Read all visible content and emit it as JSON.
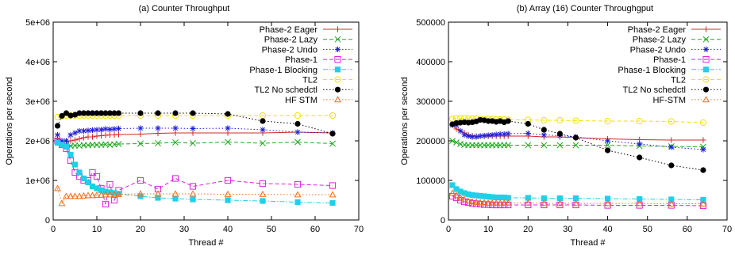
{
  "chart_data": [
    {
      "type": "line",
      "title": "(a) Counter Throughput",
      "xlabel": "Thread #",
      "ylabel": "Operations per second",
      "xlim": [
        0,
        70
      ],
      "ylim": [
        0,
        5000000
      ],
      "xticks": [
        0,
        10,
        20,
        30,
        40,
        50,
        60,
        70
      ],
      "yticks": [
        0,
        1000000,
        2000000,
        3000000,
        4000000,
        5000000
      ],
      "xtick_labels": [
        "0",
        "10",
        "20",
        "30",
        "40",
        "50",
        "60",
        "70"
      ],
      "ytick_labels": [
        "0",
        "1e+06",
        "2e+06",
        "3e+06",
        "4e+06",
        "5e+06"
      ],
      "grid": false,
      "legend_position": "top-right",
      "series": [
        {
          "name": "Phase-2 Eager",
          "color": "#d62728",
          "marker": "plus",
          "dash": "solid",
          "x": [
            1,
            2,
            3,
            4,
            5,
            6,
            7,
            8,
            9,
            10,
            11,
            12,
            13,
            14,
            15,
            20,
            24,
            28,
            32,
            40,
            48,
            56,
            64
          ],
          "y": [
            2050000,
            2000000,
            1980000,
            2000000,
            2020000,
            2050000,
            2080000,
            2100000,
            2100000,
            2120000,
            2130000,
            2140000,
            2150000,
            2150000,
            2160000,
            2170000,
            2190000,
            2200000,
            2200000,
            2200000,
            2200000,
            2220000,
            2200000
          ]
        },
        {
          "name": "Phase-2 Lazy",
          "color": "#1faa1f",
          "marker": "x",
          "dash": "dash",
          "x": [
            1,
            2,
            3,
            4,
            5,
            6,
            7,
            8,
            9,
            10,
            11,
            12,
            13,
            14,
            15,
            20,
            24,
            28,
            32,
            40,
            48,
            56,
            64
          ],
          "y": [
            2000000,
            1950000,
            1900000,
            1870000,
            1880000,
            1880000,
            1890000,
            1890000,
            1900000,
            1900000,
            1900000,
            1910000,
            1900000,
            1910000,
            1920000,
            1930000,
            1940000,
            1960000,
            1940000,
            1970000,
            1940000,
            1970000,
            1930000
          ]
        },
        {
          "name": "Phase-2 Undo",
          "color": "#1f1fd6",
          "marker": "star",
          "dash": "dot",
          "x": [
            1,
            2,
            3,
            4,
            5,
            6,
            7,
            8,
            9,
            10,
            11,
            12,
            13,
            14,
            15,
            20,
            24,
            28,
            32,
            40,
            48,
            56,
            64
          ],
          "y": [
            2150000,
            2000000,
            2000000,
            2150000,
            2200000,
            2250000,
            2250000,
            2260000,
            2270000,
            2280000,
            2280000,
            2300000,
            2290000,
            2300000,
            2310000,
            2320000,
            2320000,
            2320000,
            2310000,
            2320000,
            2280000,
            2220000,
            2200000
          ]
        },
        {
          "name": "Phase-1",
          "color": "#e020e0",
          "marker": "square",
          "dash": "dash",
          "x": [
            1,
            2,
            3,
            4,
            5,
            6,
            7,
            8,
            9,
            10,
            11,
            12,
            13,
            14,
            15,
            20,
            24,
            28,
            32,
            40,
            48,
            56,
            64
          ],
          "y": [
            2000000,
            1900000,
            1800000,
            1500000,
            1200000,
            1100000,
            1000000,
            1000000,
            1200000,
            1100000,
            800000,
            400000,
            900000,
            500000,
            750000,
            1000000,
            780000,
            1050000,
            850000,
            1000000,
            920000,
            900000,
            870000
          ]
        },
        {
          "name": "Phase-1 Blocking",
          "color": "#20d0e8",
          "marker": "filled-square",
          "dash": "dashdot",
          "x": [
            1,
            2,
            3,
            4,
            5,
            6,
            7,
            8,
            9,
            10,
            11,
            12,
            13,
            14,
            15,
            20,
            24,
            28,
            32,
            40,
            48,
            56,
            64
          ],
          "y": [
            1950000,
            1900000,
            1850000,
            1650000,
            1400000,
            1200000,
            1050000,
            950000,
            850000,
            800000,
            750000,
            720000,
            700000,
            680000,
            660000,
            600000,
            560000,
            540000,
            520000,
            500000,
            480000,
            450000,
            430000
          ]
        },
        {
          "name": "TL2",
          "color": "#f2e200",
          "marker": "circle",
          "dash": "dash",
          "x": [
            1,
            2,
            3,
            4,
            5,
            6,
            7,
            8,
            9,
            10,
            11,
            12,
            13,
            14,
            15,
            20,
            24,
            28,
            32,
            40,
            48,
            56,
            64
          ],
          "y": [
            2600000,
            2620000,
            2640000,
            2640000,
            2640000,
            2640000,
            2640000,
            2640000,
            2640000,
            2640000,
            2640000,
            2640000,
            2640000,
            2640000,
            2640000,
            2640000,
            2640000,
            2640000,
            2640000,
            2640000,
            2640000,
            2640000,
            2640000
          ]
        },
        {
          "name": "TL2 No schedctl",
          "color": "#000000",
          "marker": "filled-circle",
          "dash": "dot",
          "x": [
            1,
            2,
            3,
            4,
            5,
            6,
            7,
            8,
            9,
            10,
            11,
            12,
            13,
            14,
            15,
            20,
            24,
            28,
            32,
            40,
            48,
            56,
            64
          ],
          "y": [
            2380000,
            2630000,
            2700000,
            2640000,
            2660000,
            2700000,
            2700000,
            2700000,
            2700000,
            2700000,
            2700000,
            2700000,
            2700000,
            2700000,
            2700000,
            2700000,
            2700000,
            2700000,
            2700000,
            2680000,
            2500000,
            2430000,
            2180000
          ]
        },
        {
          "name": "HF STM",
          "color": "#f07020",
          "marker": "triangle",
          "dash": "dot",
          "x": [
            1,
            2,
            3,
            4,
            5,
            6,
            7,
            8,
            9,
            10,
            11,
            12,
            13,
            14,
            15,
            20,
            24,
            28,
            32,
            40,
            48,
            56,
            64
          ],
          "y": [
            800000,
            420000,
            600000,
            600000,
            600000,
            600000,
            610000,
            620000,
            620000,
            630000,
            630000,
            640000,
            640000,
            640000,
            650000,
            660000,
            660000,
            660000,
            660000,
            650000,
            650000,
            640000,
            640000
          ]
        }
      ]
    },
    {
      "type": "line",
      "title": "(b) Array (16) Counter Throughgput",
      "xlabel": "Thread #",
      "ylabel": "Operations per second",
      "xlim": [
        0,
        70
      ],
      "ylim": [
        0,
        500000
      ],
      "xticks": [
        0,
        10,
        20,
        30,
        40,
        50,
        60,
        70
      ],
      "yticks": [
        0,
        100000,
        200000,
        300000,
        400000,
        500000
      ],
      "xtick_labels": [
        "0",
        "10",
        "20",
        "30",
        "40",
        "50",
        "60",
        "70"
      ],
      "ytick_labels": [
        "0",
        "100000",
        "200000",
        "300000",
        "400000",
        "500000"
      ],
      "grid": false,
      "legend_position": "top-right",
      "series": [
        {
          "name": "Phase-2 Eager",
          "color": "#d62728",
          "marker": "plus",
          "dash": "solid",
          "x": [
            1,
            2,
            3,
            4,
            5,
            6,
            7,
            8,
            9,
            10,
            11,
            12,
            13,
            14,
            15,
            20,
            24,
            28,
            32,
            40,
            48,
            56,
            64
          ],
          "y": [
            240000,
            230000,
            225000,
            220000,
            215000,
            213000,
            212000,
            212000,
            212000,
            212000,
            212000,
            212000,
            212000,
            212000,
            212000,
            212000,
            210000,
            210000,
            208000,
            205000,
            203000,
            202000,
            202000
          ]
        },
        {
          "name": "Phase-2 Lazy",
          "color": "#1faa1f",
          "marker": "x",
          "dash": "dash",
          "x": [
            1,
            2,
            3,
            4,
            5,
            6,
            7,
            8,
            9,
            10,
            11,
            12,
            13,
            14,
            15,
            20,
            24,
            28,
            32,
            40,
            48,
            56,
            64
          ],
          "y": [
            200000,
            196000,
            192000,
            190000,
            189000,
            189000,
            189000,
            189000,
            189000,
            189000,
            189000,
            189000,
            189000,
            189000,
            189000,
            189000,
            189000,
            189000,
            189000,
            189000,
            187000,
            186000,
            185000
          ]
        },
        {
          "name": "Phase-2 Undo",
          "color": "#1f1fd6",
          "marker": "star",
          "dash": "dot",
          "x": [
            1,
            2,
            3,
            4,
            5,
            6,
            7,
            8,
            9,
            10,
            11,
            12,
            13,
            14,
            15,
            20,
            24,
            28,
            32,
            40,
            48,
            56,
            64
          ],
          "y": [
            240000,
            240000,
            225000,
            215000,
            212000,
            210000,
            210000,
            212000,
            213000,
            214000,
            215000,
            216000,
            217000,
            217000,
            218000,
            219000,
            215000,
            213000,
            210000,
            200000,
            192000,
            184000,
            178000
          ]
        },
        {
          "name": "Phase-1",
          "color": "#e020e0",
          "marker": "square",
          "dash": "dash",
          "x": [
            1,
            2,
            3,
            4,
            5,
            6,
            7,
            8,
            9,
            10,
            11,
            12,
            13,
            14,
            15,
            20,
            24,
            28,
            32,
            40,
            48,
            56,
            64
          ],
          "y": [
            60000,
            56000,
            50000,
            46000,
            44000,
            42000,
            41000,
            40000,
            39000,
            39000,
            38000,
            38000,
            38000,
            38000,
            38000,
            38000,
            38000,
            38000,
            38000,
            37000,
            37000,
            37000,
            36000
          ]
        },
        {
          "name": "Phase-1 Blocking",
          "color": "#20d0e8",
          "marker": "filled-square",
          "dash": "dashdot",
          "x": [
            1,
            2,
            3,
            4,
            5,
            6,
            7,
            8,
            9,
            10,
            11,
            12,
            13,
            14,
            15,
            20,
            24,
            28,
            32,
            40,
            48,
            56,
            64
          ],
          "y": [
            88000,
            78000,
            72000,
            68000,
            65000,
            63000,
            62000,
            61000,
            60000,
            59000,
            58000,
            57000,
            57000,
            57000,
            56000,
            56000,
            55000,
            55000,
            55000,
            54000,
            53000,
            52000,
            51000
          ]
        },
        {
          "name": "TL2",
          "color": "#f2e200",
          "marker": "circle",
          "dash": "dash",
          "x": [
            1,
            2,
            3,
            4,
            5,
            6,
            7,
            8,
            9,
            10,
            11,
            12,
            13,
            14,
            15,
            20,
            24,
            28,
            32,
            40,
            48,
            56,
            64
          ],
          "y": [
            255000,
            257000,
            257000,
            257000,
            256000,
            256000,
            256000,
            255000,
            255000,
            255000,
            255000,
            254000,
            254000,
            254000,
            253000,
            253000,
            252000,
            252000,
            251000,
            250000,
            250000,
            249000,
            246000
          ]
        },
        {
          "name": "TL2 No schedctl",
          "color": "#000000",
          "marker": "filled-circle",
          "dash": "dot",
          "x": [
            1,
            2,
            3,
            4,
            5,
            6,
            7,
            8,
            9,
            10,
            11,
            12,
            13,
            14,
            15,
            20,
            24,
            28,
            32,
            40,
            48,
            56,
            64
          ],
          "y": [
            242000,
            245000,
            246000,
            247000,
            246000,
            247000,
            249000,
            253000,
            252000,
            250000,
            250000,
            248000,
            250000,
            247000,
            250000,
            243000,
            228000,
            218000,
            208000,
            176000,
            158000,
            138000,
            126000
          ]
        },
        {
          "name": "HF-STM",
          "color": "#f07020",
          "marker": "triangle",
          "dash": "dot",
          "x": [
            1,
            2,
            3,
            4,
            5,
            6,
            7,
            8,
            9,
            10,
            11,
            12,
            13,
            14,
            15,
            20,
            24,
            28,
            32,
            40,
            48,
            56,
            64
          ],
          "y": [
            68000,
            62000,
            56000,
            52000,
            48000,
            46000,
            45000,
            44000,
            44000,
            43000,
            43000,
            43000,
            43000,
            43000,
            43000,
            43000,
            42000,
            42000,
            42000,
            42000,
            42000,
            41000,
            41000
          ]
        }
      ]
    }
  ]
}
